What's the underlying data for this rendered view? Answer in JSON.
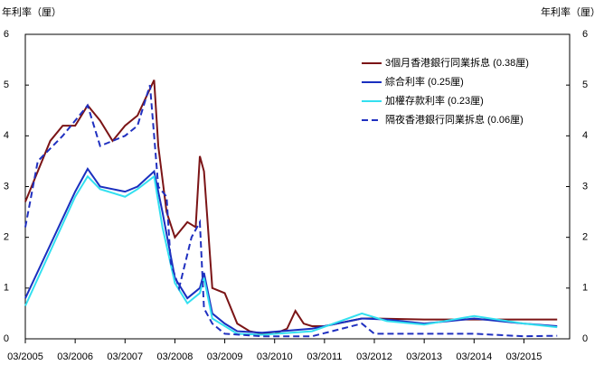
{
  "chart_data": {
    "type": "line",
    "y_label": "年利率（厘）",
    "y2_label": "年利率（厘）",
    "xlim": [
      "03/2005",
      "02/2016"
    ],
    "xticks": [
      "03/2005",
      "03/2006",
      "03/2007",
      "03/2008",
      "03/2009",
      "03/2010",
      "03/2011",
      "03/2012",
      "03/2013",
      "03/2014",
      "03/2015"
    ],
    "ylim": [
      0,
      6
    ],
    "yticks": [
      0,
      1,
      2,
      3,
      4,
      5,
      6
    ],
    "y2lim": [
      0,
      6
    ],
    "y2ticks": [
      0,
      1,
      2,
      3,
      4,
      5,
      6
    ],
    "legend": "upper right",
    "series": [
      {
        "name": "3個月香港銀行同業拆息 (0.38厘)",
        "color": "#7b1416",
        "dash": false,
        "x": [
          "03/2005",
          "06/2005",
          "09/2005",
          "12/2005",
          "03/2006",
          "06/2006",
          "09/2006",
          "12/2006",
          "03/2007",
          "06/2007",
          "10/2007",
          "11/2007",
          "01/2008",
          "03/2008",
          "06/2008",
          "08/2008",
          "09/2008",
          "10/2008",
          "12/2008",
          "03/2009",
          "06/2009",
          "09/2009",
          "12/2009",
          "03/2010",
          "06/2010",
          "08/2010",
          "10/2010",
          "12/2010",
          "03/2011",
          "06/2011",
          "12/2011",
          "03/2012",
          "03/2013",
          "03/2014",
          "03/2015",
          "11/2015"
        ],
        "values": [
          2.7,
          3.3,
          3.9,
          4.2,
          4.2,
          4.6,
          4.3,
          3.9,
          4.2,
          4.4,
          5.1,
          3.8,
          2.5,
          2.0,
          2.3,
          2.2,
          3.6,
          3.3,
          1.0,
          0.9,
          0.3,
          0.15,
          0.1,
          0.1,
          0.2,
          0.55,
          0.3,
          0.25,
          0.25,
          0.3,
          0.4,
          0.4,
          0.38,
          0.38,
          0.38,
          0.38
        ]
      },
      {
        "name": "綜合利率 (0.25厘)",
        "color": "#1a2fbf",
        "dash": false,
        "x": [
          "03/2005",
          "03/2006",
          "06/2006",
          "09/2006",
          "03/2007",
          "06/2007",
          "10/2007",
          "12/2007",
          "03/2008",
          "06/2008",
          "09/2008",
          "10/2008",
          "12/2008",
          "03/2009",
          "06/2009",
          "12/2009",
          "12/2010",
          "12/2011",
          "06/2012",
          "03/2013",
          "03/2014",
          "03/2015",
          "11/2015"
        ],
        "values": [
          0.8,
          2.9,
          3.35,
          3.0,
          2.9,
          3.0,
          3.3,
          2.5,
          1.2,
          0.8,
          1.0,
          1.3,
          0.5,
          0.3,
          0.15,
          0.12,
          0.2,
          0.4,
          0.38,
          0.3,
          0.4,
          0.3,
          0.25
        ]
      },
      {
        "name": "加權存款利率 (0.23厘)",
        "color": "#33e0f0",
        "dash": false,
        "x": [
          "03/2005",
          "03/2006",
          "06/2006",
          "09/2006",
          "03/2007",
          "06/2007",
          "10/2007",
          "12/2007",
          "03/2008",
          "06/2008",
          "09/2008",
          "10/2008",
          "12/2008",
          "03/2009",
          "06/2009",
          "12/2009",
          "12/2010",
          "12/2011",
          "06/2012",
          "03/2013",
          "03/2014",
          "03/2015",
          "11/2015"
        ],
        "values": [
          0.65,
          2.8,
          3.2,
          2.95,
          2.8,
          2.95,
          3.2,
          2.2,
          1.1,
          0.7,
          0.9,
          1.2,
          0.4,
          0.25,
          0.1,
          0.08,
          0.15,
          0.5,
          0.35,
          0.28,
          0.45,
          0.3,
          0.23
        ]
      },
      {
        "name": "隔夜香港銀行同業拆息 (0.06厘)",
        "color": "#2030c0",
        "dash": true,
        "x": [
          "03/2005",
          "06/2005",
          "12/2005",
          "06/2006",
          "09/2006",
          "12/2006",
          "03/2007",
          "06/2007",
          "09/2007",
          "11/2007",
          "01/2008",
          "02/2008",
          "04/2008",
          "07/2008",
          "09/2008",
          "10/2008",
          "12/2008",
          "03/2009",
          "12/2009",
          "12/2010",
          "12/2011",
          "03/2012",
          "03/2014",
          "03/2015",
          "11/2015"
        ],
        "values": [
          2.2,
          3.5,
          4.0,
          4.6,
          3.8,
          3.9,
          4.0,
          4.2,
          5.0,
          3.0,
          2.8,
          1.5,
          1.0,
          2.0,
          2.3,
          0.6,
          0.3,
          0.1,
          0.05,
          0.05,
          0.3,
          0.1,
          0.1,
          0.05,
          0.06
        ]
      }
    ]
  }
}
